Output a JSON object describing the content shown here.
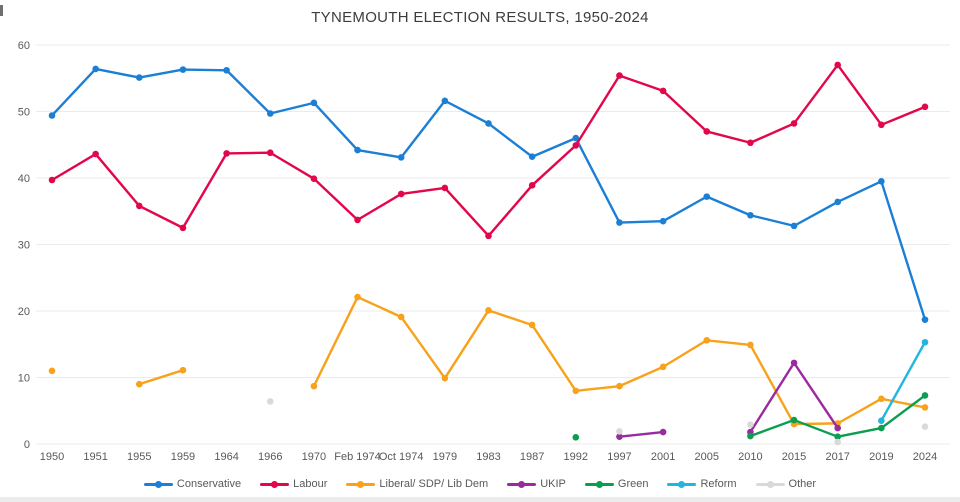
{
  "chart_data": {
    "type": "line",
    "title": "TYNEMOUTH ELECTION RESULTS, 1950-2024",
    "xlabel": "",
    "ylabel": "",
    "ylim": [
      0,
      60
    ],
    "yticks": [
      0,
      10,
      20,
      30,
      40,
      50,
      60
    ],
    "grid": true,
    "legend_position": "bottom",
    "categories": [
      "1950",
      "1951",
      "1955",
      "1959",
      "1964",
      "1966",
      "1970",
      "Feb 1974",
      "Oct 1974",
      "1979",
      "1983",
      "1987",
      "1992",
      "1997",
      "2001",
      "2005",
      "2010",
      "2015",
      "2017",
      "2019",
      "2024"
    ],
    "series": [
      {
        "name": "Conservative",
        "color": "#1b7fd6",
        "values": [
          49.4,
          56.4,
          55.1,
          56.3,
          56.2,
          49.7,
          51.3,
          44.2,
          43.1,
          51.6,
          48.2,
          43.2,
          46.0,
          33.3,
          33.5,
          37.2,
          34.4,
          32.8,
          36.4,
          39.5,
          18.7
        ]
      },
      {
        "name": "Labour",
        "color": "#e2064a",
        "values": [
          39.7,
          43.6,
          35.8,
          32.5,
          43.7,
          43.8,
          39.9,
          33.7,
          37.6,
          38.5,
          31.3,
          38.9,
          44.9,
          55.4,
          53.1,
          47.0,
          45.3,
          48.2,
          57.0,
          48.0,
          50.7
        ]
      },
      {
        "name": "Liberal/ SDP/ Lib  Dem",
        "color": "#f7a21a",
        "values": [
          11.0,
          null,
          9.0,
          11.1,
          null,
          null,
          8.7,
          22.1,
          19.1,
          9.9,
          20.1,
          17.9,
          8.0,
          8.7,
          11.6,
          15.6,
          14.9,
          3.0,
          3.1,
          6.8,
          5.5
        ]
      },
      {
        "name": "UKIP",
        "color": "#9a2a9f",
        "values": [
          null,
          null,
          null,
          null,
          null,
          null,
          null,
          null,
          null,
          null,
          null,
          null,
          null,
          1.1,
          1.8,
          null,
          1.8,
          12.2,
          2.4,
          null,
          null
        ]
      },
      {
        "name": "Green",
        "color": "#0a9e4e",
        "values": [
          null,
          null,
          null,
          null,
          null,
          null,
          null,
          null,
          null,
          null,
          null,
          null,
          1.0,
          null,
          null,
          null,
          1.2,
          3.6,
          1.1,
          2.4,
          7.3
        ]
      },
      {
        "name": "Reform",
        "color": "#22b5dd",
        "values": [
          null,
          null,
          null,
          null,
          null,
          null,
          null,
          null,
          null,
          null,
          null,
          null,
          null,
          null,
          null,
          null,
          null,
          null,
          null,
          3.5,
          15.3
        ]
      },
      {
        "name": "Other",
        "color": "#d9d9d9",
        "values": [
          null,
          null,
          null,
          null,
          null,
          6.4,
          null,
          null,
          null,
          null,
          null,
          null,
          null,
          1.9,
          null,
          null,
          2.9,
          null,
          0.3,
          null,
          2.6
        ]
      }
    ]
  }
}
